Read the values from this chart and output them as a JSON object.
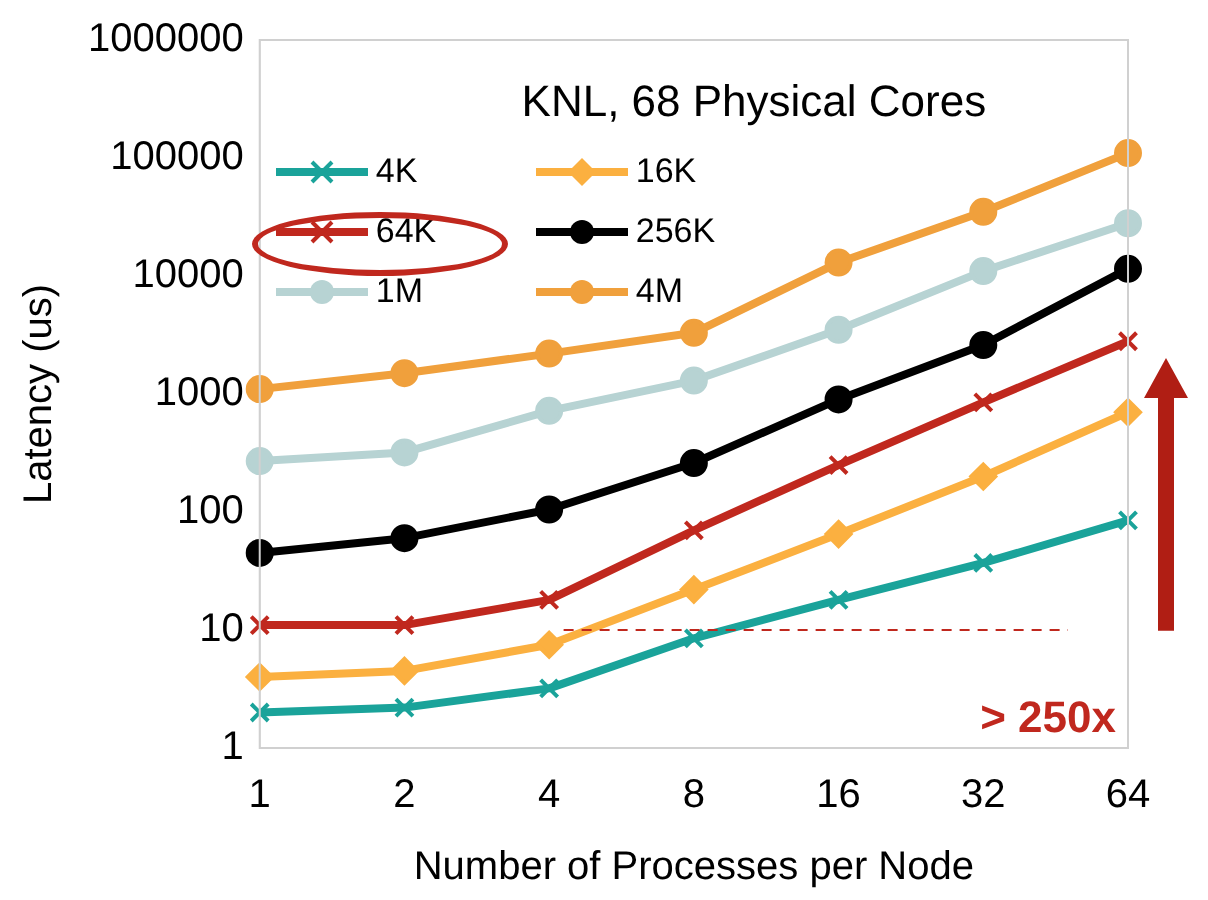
{
  "chart_data": {
    "type": "line",
    "title": "KNL, 68 Physical Cores",
    "xlabel": "Number of Processes per Node",
    "ylabel": "Latency (us)",
    "categories": [
      "1",
      "2",
      "4",
      "8",
      "16",
      "32",
      "64"
    ],
    "series": [
      {
        "name": "4K",
        "color": "#1aa39a",
        "marker": "cross",
        "values": [
          2,
          2.2,
          3.2,
          8.5,
          18,
          37,
          85
        ]
      },
      {
        "name": "16K",
        "color": "#fbb040",
        "marker": "diamond",
        "values": [
          4,
          4.5,
          7.5,
          22,
          65,
          200,
          700
        ]
      },
      {
        "name": "64K",
        "color": "#c0281e",
        "marker": "cross",
        "values": [
          11,
          11,
          18,
          70,
          250,
          850,
          2800
        ]
      },
      {
        "name": "256K",
        "color": "#000000",
        "marker": "circle",
        "values": [
          45,
          60,
          105,
          260,
          900,
          2600,
          11500
        ]
      },
      {
        "name": "1M",
        "color": "#b7d3d3",
        "marker": "circle",
        "values": [
          270,
          320,
          720,
          1300,
          3500,
          11000,
          28000
        ]
      },
      {
        "name": "4M",
        "color": "#f0a03c",
        "marker": "circle",
        "values": [
          1100,
          1500,
          2200,
          3300,
          13000,
          35000,
          110000
        ]
      }
    ],
    "log": "y",
    "ylim": [
      1,
      1000000
    ],
    "yticks": [
      1,
      10,
      100,
      1000,
      10000,
      100000,
      1000000
    ],
    "grid": false,
    "legend": "top left",
    "ref_lines": [
      {
        "axis": "y",
        "value": 10,
        "color": "#c0281e",
        "line_style": "dashed"
      }
    ],
    "annotations": [
      "> 250x"
    ]
  }
}
